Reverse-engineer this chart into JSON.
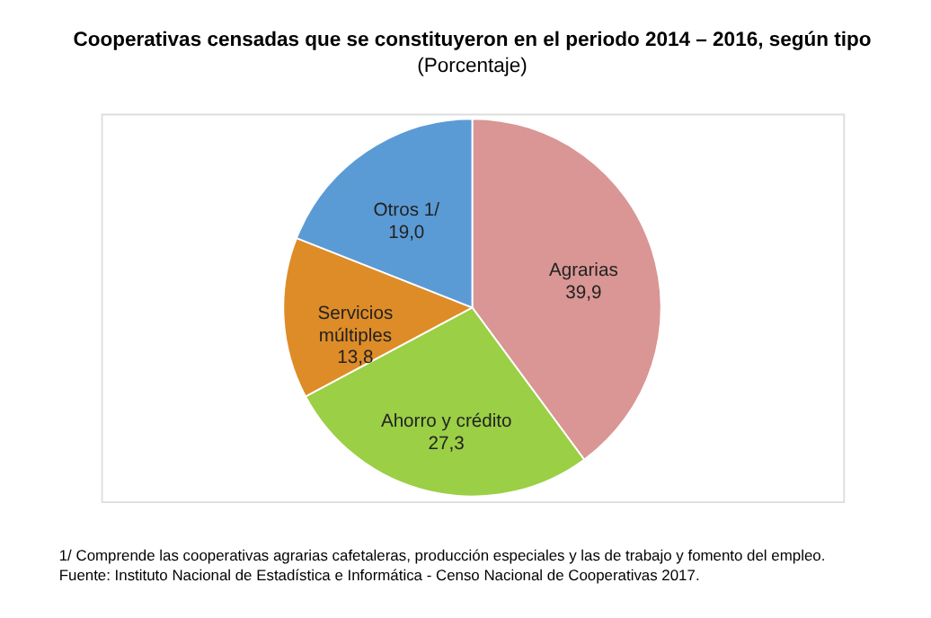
{
  "chart_data": {
    "type": "pie",
    "title": "Cooperativas censadas que se constituyeron en el periodo 2014 – 2016, según tipo",
    "subtitle": "(Porcentaje)",
    "categories": [
      "Agrarias",
      "Ahorro y crédito",
      "Servicios múltiples",
      "Otros  1/"
    ],
    "values": [
      39.9,
      27.3,
      13.8,
      19.0
    ],
    "value_labels": [
      "39,9",
      "27,3",
      "13,8",
      "19,0"
    ],
    "colors": [
      "#d99694",
      "#9bcf45",
      "#de8c28",
      "#5b9bd5"
    ],
    "legend": false,
    "annotations": [
      "1/ Comprende las cooperativas agrarias cafetaleras, producción especiales y las de trabajo y fomento del empleo.",
      "Fuente: Instituto Nacional de Estadística e Informática - Censo Nacional de Cooperativas 2017."
    ]
  }
}
